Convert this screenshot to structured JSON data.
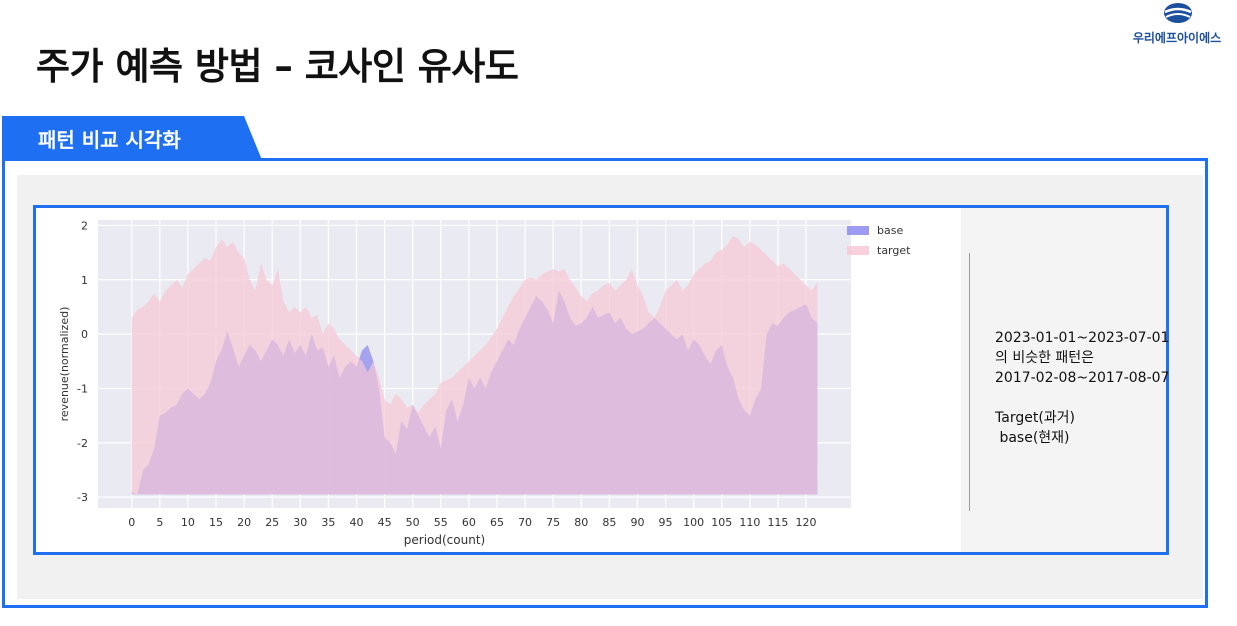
{
  "page": {
    "title": "주가 예측 방법 – 코사인 유사도",
    "section_label": "패턴 비교 시각화"
  },
  "logo": {
    "text": "우리에프아이에스"
  },
  "colors": {
    "accent": "#1f6ff2",
    "base_fill": "#8f8ef0",
    "target_fill": "#f7c6d4",
    "plot_bg": "#eaeaf2"
  },
  "note": {
    "lines": [
      "2023-01-01~2023-07-01",
      "의 비슷한 패턴은",
      "2017-02-08~2017-08-07",
      "",
      "Target(과거)",
      " base(현재)"
    ]
  },
  "chart_data": {
    "type": "area",
    "title": "",
    "xlabel": "period(count)",
    "ylabel": "revenue(normalized)",
    "xlim": [
      -6,
      128
    ],
    "ylim": [
      -3.2,
      2.1
    ],
    "baseline": -2.95,
    "xticks": [
      0,
      5,
      10,
      15,
      20,
      25,
      30,
      35,
      40,
      45,
      50,
      55,
      60,
      65,
      70,
      75,
      80,
      85,
      90,
      95,
      100,
      105,
      110,
      115,
      120
    ],
    "yticks": [
      2,
      1,
      0,
      -1,
      -2,
      -3
    ],
    "legend": {
      "position": "top-right",
      "entries": [
        "base",
        "target"
      ]
    },
    "x": [
      0,
      1,
      2,
      3,
      4,
      5,
      6,
      7,
      8,
      9,
      10,
      11,
      12,
      13,
      14,
      15,
      16,
      17,
      18,
      19,
      20,
      21,
      22,
      23,
      24,
      25,
      26,
      27,
      28,
      29,
      30,
      31,
      32,
      33,
      34,
      35,
      36,
      37,
      38,
      39,
      40,
      41,
      42,
      43,
      44,
      45,
      46,
      47,
      48,
      49,
      50,
      51,
      52,
      53,
      54,
      55,
      56,
      57,
      58,
      59,
      60,
      61,
      62,
      63,
      64,
      65,
      66,
      67,
      68,
      69,
      70,
      71,
      72,
      73,
      74,
      75,
      76,
      77,
      78,
      79,
      80,
      81,
      82,
      83,
      84,
      85,
      86,
      87,
      88,
      89,
      90,
      91,
      92,
      93,
      94,
      95,
      96,
      97,
      98,
      99,
      100,
      101,
      102,
      103,
      104,
      105,
      106,
      107,
      108,
      109,
      110,
      111,
      112,
      113,
      114,
      115,
      116,
      117,
      118,
      119,
      120,
      121,
      122
    ],
    "series": [
      {
        "name": "base",
        "values": [
          -2.9,
          -2.95,
          -2.5,
          -2.4,
          -2.1,
          -1.5,
          -1.45,
          -1.35,
          -1.3,
          -1.1,
          -1.0,
          -1.1,
          -1.2,
          -1.1,
          -0.9,
          -0.5,
          -0.3,
          0.05,
          -0.25,
          -0.6,
          -0.4,
          -0.2,
          -0.3,
          -0.5,
          -0.3,
          -0.1,
          -0.2,
          -0.4,
          -0.1,
          -0.35,
          -0.2,
          -0.4,
          0.0,
          -0.3,
          -0.25,
          -0.6,
          -0.4,
          -0.8,
          -0.6,
          -0.5,
          -0.6,
          -0.3,
          -0.2,
          -0.5,
          -1.0,
          -1.9,
          -2.0,
          -2.2,
          -1.6,
          -1.75,
          -1.3,
          -1.5,
          -1.7,
          -1.9,
          -1.7,
          -2.1,
          -1.4,
          -1.2,
          -1.6,
          -1.3,
          -0.8,
          -1.0,
          -0.8,
          -1.0,
          -0.7,
          -0.5,
          -0.3,
          -0.1,
          -0.2,
          0.1,
          0.3,
          0.5,
          0.7,
          0.6,
          0.45,
          0.2,
          0.8,
          0.6,
          0.3,
          0.15,
          0.2,
          0.3,
          0.5,
          0.3,
          0.35,
          0.4,
          0.2,
          0.3,
          0.1,
          0.0,
          0.05,
          0.1,
          0.2,
          0.3,
          0.2,
          0.1,
          0.0,
          -0.1,
          0.0,
          -0.3,
          -0.1,
          -0.2,
          -0.4,
          -0.55,
          -0.3,
          -0.2,
          -0.6,
          -0.8,
          -1.2,
          -1.4,
          -1.5,
          -1.2,
          -1.0,
          0.0,
          0.2,
          0.15,
          0.3,
          0.4,
          0.45,
          0.5,
          0.55,
          0.3,
          0.2
        ]
      },
      {
        "name": "target",
        "values": [
          0.3,
          0.45,
          0.5,
          0.6,
          0.75,
          0.6,
          0.8,
          0.9,
          1.0,
          0.85,
          1.1,
          1.2,
          1.3,
          1.4,
          1.35,
          1.6,
          1.75,
          1.6,
          1.7,
          1.5,
          1.4,
          1.0,
          0.8,
          1.3,
          1.0,
          0.9,
          1.2,
          0.6,
          0.4,
          0.5,
          0.4,
          0.5,
          0.3,
          0.35,
          0.0,
          0.2,
          0.1,
          -0.1,
          -0.2,
          -0.3,
          -0.4,
          -0.5,
          -0.7,
          -0.5,
          -0.8,
          -1.2,
          -1.3,
          -1.1,
          -1.2,
          -1.35,
          -1.3,
          -1.45,
          -1.3,
          -1.2,
          -1.1,
          -0.9,
          -0.85,
          -0.8,
          -0.7,
          -0.6,
          -0.5,
          -0.4,
          -0.3,
          -0.2,
          -0.05,
          0.1,
          0.3,
          0.5,
          0.7,
          0.85,
          1.0,
          1.05,
          1.0,
          1.1,
          1.15,
          1.2,
          1.15,
          1.2,
          1.0,
          0.85,
          0.7,
          0.6,
          0.75,
          0.8,
          0.9,
          0.95,
          0.8,
          0.9,
          1.0,
          1.2,
          0.9,
          0.7,
          0.4,
          0.3,
          0.5,
          0.8,
          0.9,
          1.0,
          0.8,
          0.9,
          1.1,
          1.2,
          1.3,
          1.35,
          1.5,
          1.55,
          1.65,
          1.8,
          1.75,
          1.6,
          1.7,
          1.65,
          1.55,
          1.45,
          1.35,
          1.25,
          1.3,
          1.2,
          1.1,
          1.0,
          0.9,
          0.8,
          0.95
        ]
      }
    ]
  }
}
